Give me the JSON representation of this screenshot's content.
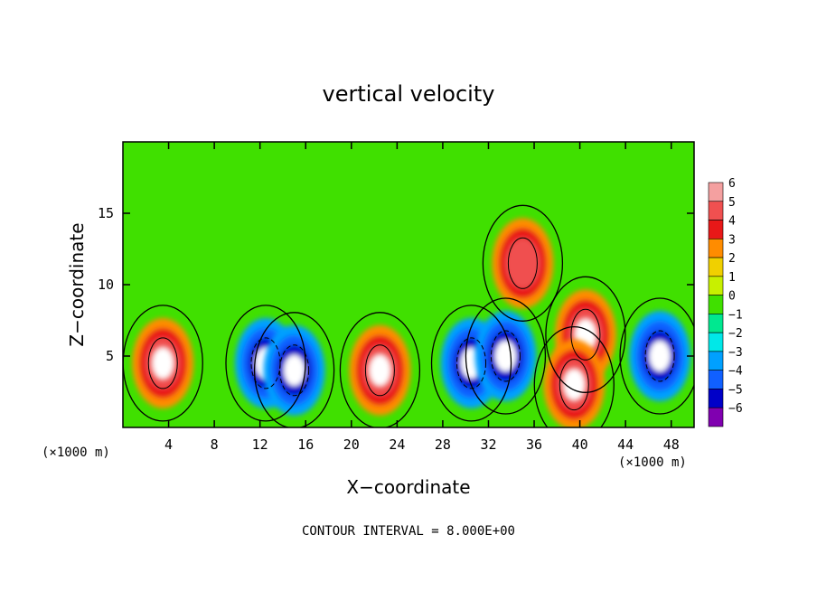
{
  "chart_data": {
    "type": "heatmap",
    "title": "vertical velocity",
    "xlabel": "X−coordinate",
    "ylabel": "Z−coordinate",
    "x_unit": "(×1000 m)",
    "z_unit": "(×1000 m)",
    "footer": "CONTOUR INTERVAL = 8.000E+00",
    "xlim": [
      0,
      50
    ],
    "ylim": [
      0,
      20
    ],
    "x_ticks": [
      4,
      8,
      12,
      16,
      20,
      24,
      28,
      32,
      36,
      40,
      44,
      48
    ],
    "y_ticks": [
      5,
      10,
      15
    ],
    "colorbar": {
      "levels": [
        "6",
        "5",
        "4",
        "3",
        "2",
        "1",
        "0",
        "−1",
        "−2",
        "−3",
        "−4",
        "−5",
        "−6"
      ],
      "colors": [
        "#f4a0a0",
        "#f05050",
        "#e81818",
        "#ff8c00",
        "#f0d000",
        "#c8f000",
        "#40e000",
        "#00e890",
        "#00e8e8",
        "#00a0ff",
        "#1060ff",
        "#0000c8",
        "#8000b0"
      ]
    },
    "features": [
      {
        "type": "updraft",
        "x": 3.5,
        "z": 4.5,
        "w_max": 6
      },
      {
        "type": "downdraft",
        "x": 12.5,
        "z": 4.5,
        "w_min": -6
      },
      {
        "type": "downdraft",
        "x": 15,
        "z": 4,
        "w_min": -6
      },
      {
        "type": "updraft",
        "x": 22.5,
        "z": 4,
        "w_max": 6
      },
      {
        "type": "downdraft",
        "x": 30.5,
        "z": 4.5,
        "w_min": -6
      },
      {
        "type": "downdraft",
        "x": 33.5,
        "z": 5,
        "w_min": -6
      },
      {
        "type": "updraft",
        "x": 35,
        "z": 11.5,
        "w_max": 4
      },
      {
        "type": "updraft",
        "x": 40.5,
        "z": 6.5,
        "w_max": 6
      },
      {
        "type": "updraft",
        "x": 39.5,
        "z": 3,
        "w_max": 6
      },
      {
        "type": "downdraft",
        "x": 47,
        "z": 5,
        "w_min": -6
      }
    ]
  }
}
